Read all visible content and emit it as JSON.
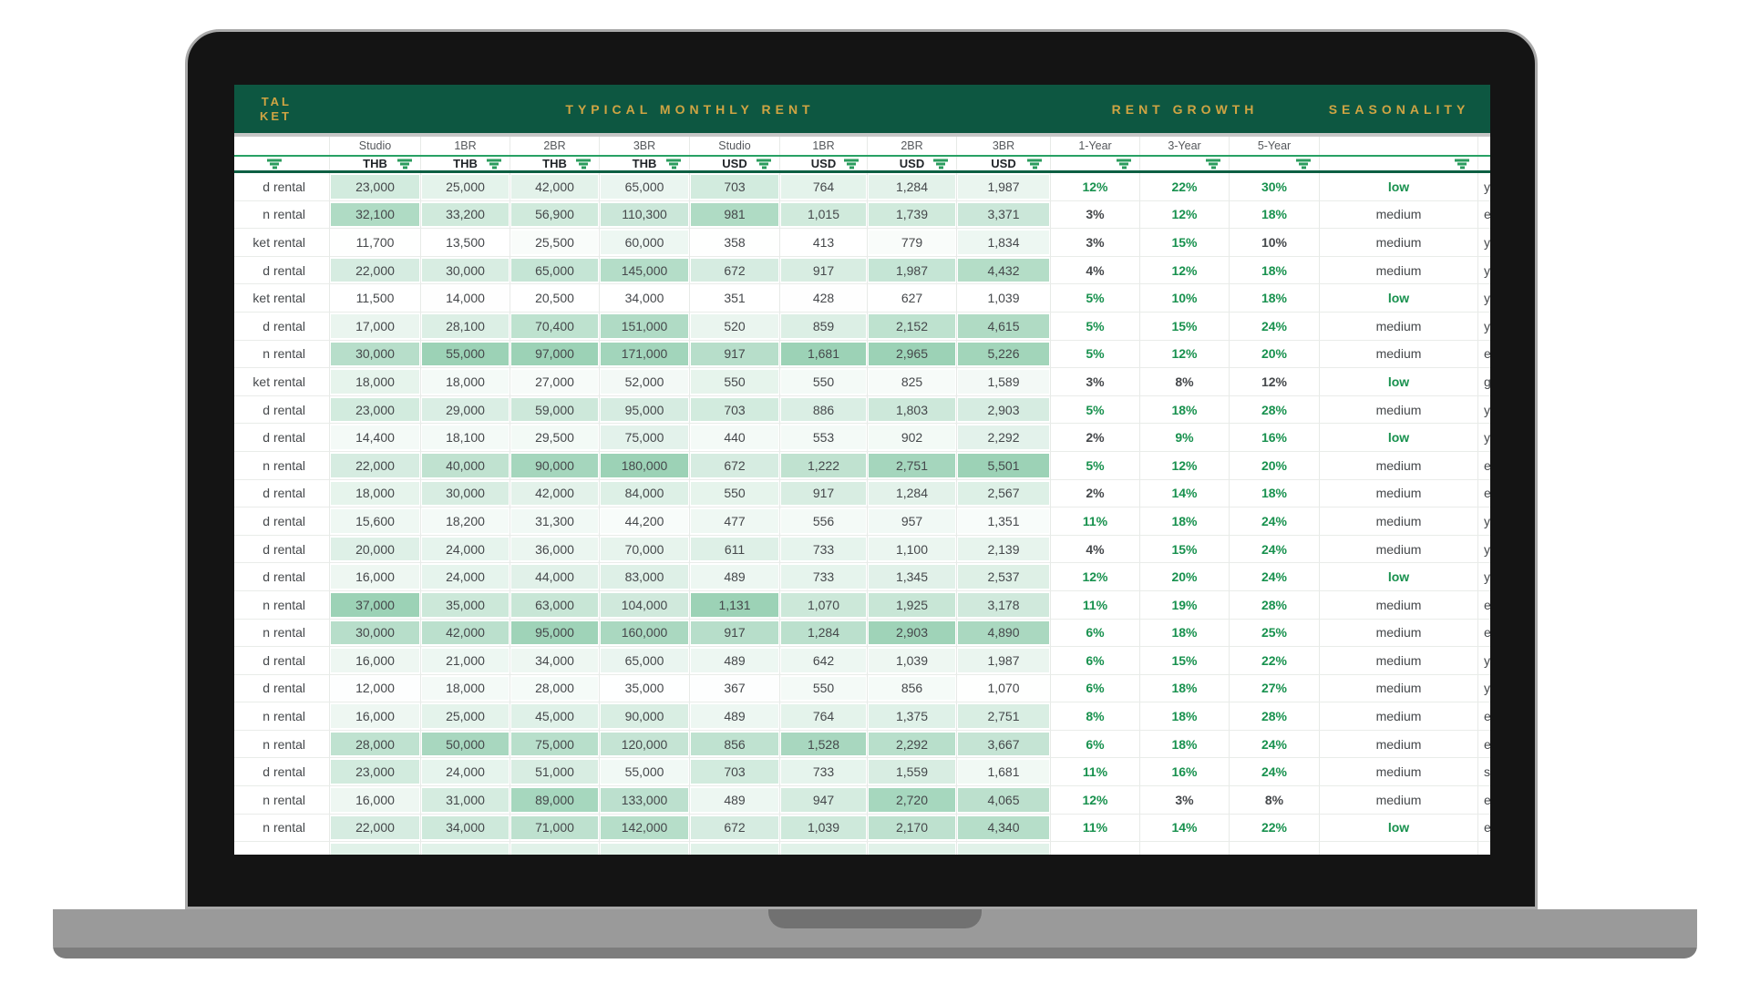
{
  "device": {
    "type": "laptop-mockup"
  },
  "header": {
    "clipped_title_lines": [
      "TAL",
      "KET"
    ],
    "sections": {
      "rent": "TYPICAL MONTHLY RENT",
      "growth": "RENT GROWTH",
      "seasonality": "SEASONALITY"
    },
    "unit_columns": [
      "Studio",
      "1BR",
      "2BR",
      "3BR",
      "Studio",
      "1BR",
      "2BR",
      "3BR"
    ],
    "currency_row": [
      "THB",
      "THB",
      "THB",
      "THB",
      "USD",
      "USD",
      "USD",
      "USD"
    ],
    "growth_columns": [
      "1-Year",
      "3-Year",
      "5-Year"
    ]
  },
  "style": {
    "band_green": "#0d5741",
    "band_gold": "#cfa443",
    "scale_max_green": "#9cd2b6",
    "positive_green": "#18914e",
    "filter_icon_green": "#2a9c5d",
    "growth_green_thresholds": {
      "one_year": 5,
      "three_year": 9,
      "five_year": 16
    }
  },
  "table": {
    "rows": [
      {
        "label": "d rental",
        "thb": [
          23000,
          25000,
          42000,
          65000
        ],
        "usd": [
          703,
          764,
          1284,
          1987
        ],
        "growth": [
          12,
          22,
          30
        ],
        "seasonality": "low",
        "next_fragment": "y"
      },
      {
        "label": "n rental",
        "thb": [
          32100,
          33200,
          56900,
          110300
        ],
        "usd": [
          981,
          1015,
          1739,
          3371
        ],
        "growth": [
          3,
          12,
          18
        ],
        "seasonality": "medium",
        "next_fragment": "e"
      },
      {
        "label": "ket rental",
        "thb": [
          11700,
          13500,
          25500,
          60000
        ],
        "usd": [
          358,
          413,
          779,
          1834
        ],
        "growth": [
          3,
          15,
          10
        ],
        "seasonality": "medium",
        "next_fragment": "y"
      },
      {
        "label": "d rental",
        "thb": [
          22000,
          30000,
          65000,
          145000
        ],
        "usd": [
          672,
          917,
          1987,
          4432
        ],
        "growth": [
          4,
          12,
          18
        ],
        "seasonality": "medium",
        "next_fragment": "y"
      },
      {
        "label": "ket rental",
        "thb": [
          11500,
          14000,
          20500,
          34000
        ],
        "usd": [
          351,
          428,
          627,
          1039
        ],
        "growth": [
          5,
          10,
          18
        ],
        "seasonality": "low",
        "next_fragment": "y"
      },
      {
        "label": "d rental",
        "thb": [
          17000,
          28100,
          70400,
          151000
        ],
        "usd": [
          520,
          859,
          2152,
          4615
        ],
        "growth": [
          5,
          15,
          24
        ],
        "seasonality": "medium",
        "next_fragment": "y"
      },
      {
        "label": "n rental",
        "thb": [
          30000,
          55000,
          97000,
          171000
        ],
        "usd": [
          917,
          1681,
          2965,
          5226
        ],
        "growth": [
          5,
          12,
          20
        ],
        "seasonality": "medium",
        "next_fragment": "e"
      },
      {
        "label": "ket rental",
        "thb": [
          18000,
          18000,
          27000,
          52000
        ],
        "usd": [
          550,
          550,
          825,
          1589
        ],
        "growth": [
          3,
          8,
          12
        ],
        "seasonality": "low",
        "next_fragment": "g"
      },
      {
        "label": "d rental",
        "thb": [
          23000,
          29000,
          59000,
          95000
        ],
        "usd": [
          703,
          886,
          1803,
          2903
        ],
        "growth": [
          5,
          18,
          28
        ],
        "seasonality": "medium",
        "next_fragment": "y"
      },
      {
        "label": "d rental",
        "thb": [
          14400,
          18100,
          29500,
          75000
        ],
        "usd": [
          440,
          553,
          902,
          2292
        ],
        "growth": [
          2,
          9,
          16
        ],
        "seasonality": "low",
        "next_fragment": "y"
      },
      {
        "label": "n rental",
        "thb": [
          22000,
          40000,
          90000,
          180000
        ],
        "usd": [
          672,
          1222,
          2751,
          5501
        ],
        "growth": [
          5,
          12,
          20
        ],
        "seasonality": "medium",
        "next_fragment": "e"
      },
      {
        "label": "d rental",
        "thb": [
          18000,
          30000,
          42000,
          84000
        ],
        "usd": [
          550,
          917,
          1284,
          2567
        ],
        "growth": [
          2,
          14,
          18
        ],
        "seasonality": "medium",
        "next_fragment": "e"
      },
      {
        "label": "d rental",
        "thb": [
          15600,
          18200,
          31300,
          44200
        ],
        "usd": [
          477,
          556,
          957,
          1351
        ],
        "growth": [
          11,
          18,
          24
        ],
        "seasonality": "medium",
        "next_fragment": "y"
      },
      {
        "label": "d rental",
        "thb": [
          20000,
          24000,
          36000,
          70000
        ],
        "usd": [
          611,
          733,
          1100,
          2139
        ],
        "growth": [
          4,
          15,
          24
        ],
        "seasonality": "medium",
        "next_fragment": "y"
      },
      {
        "label": "d rental",
        "thb": [
          16000,
          24000,
          44000,
          83000
        ],
        "usd": [
          489,
          733,
          1345,
          2537
        ],
        "growth": [
          12,
          20,
          24
        ],
        "seasonality": "low",
        "next_fragment": "y"
      },
      {
        "label": "n rental",
        "thb": [
          37000,
          35000,
          63000,
          104000
        ],
        "usd": [
          1131,
          1070,
          1925,
          3178
        ],
        "growth": [
          11,
          19,
          28
        ],
        "seasonality": "medium",
        "next_fragment": "e"
      },
      {
        "label": "n rental",
        "thb": [
          30000,
          42000,
          95000,
          160000
        ],
        "usd": [
          917,
          1284,
          2903,
          4890
        ],
        "growth": [
          6,
          18,
          25
        ],
        "seasonality": "medium",
        "next_fragment": "e"
      },
      {
        "label": "d rental",
        "thb": [
          16000,
          21000,
          34000,
          65000
        ],
        "usd": [
          489,
          642,
          1039,
          1987
        ],
        "growth": [
          6,
          15,
          22
        ],
        "seasonality": "medium",
        "next_fragment": "y"
      },
      {
        "label": "d rental",
        "thb": [
          12000,
          18000,
          28000,
          35000
        ],
        "usd": [
          367,
          550,
          856,
          1070
        ],
        "growth": [
          6,
          18,
          27
        ],
        "seasonality": "medium",
        "next_fragment": "y"
      },
      {
        "label": "n rental",
        "thb": [
          16000,
          25000,
          45000,
          90000
        ],
        "usd": [
          489,
          764,
          1375,
          2751
        ],
        "growth": [
          8,
          18,
          28
        ],
        "seasonality": "medium",
        "next_fragment": "e"
      },
      {
        "label": "n rental",
        "thb": [
          28000,
          50000,
          75000,
          120000
        ],
        "usd": [
          856,
          1528,
          2292,
          3667
        ],
        "growth": [
          6,
          18,
          24
        ],
        "seasonality": "medium",
        "next_fragment": "e"
      },
      {
        "label": "d rental",
        "thb": [
          23000,
          24000,
          51000,
          55000
        ],
        "usd": [
          703,
          733,
          1559,
          1681
        ],
        "growth": [
          11,
          16,
          24
        ],
        "seasonality": "medium",
        "next_fragment": "s"
      },
      {
        "label": "n rental",
        "thb": [
          16000,
          31000,
          89000,
          133000
        ],
        "usd": [
          489,
          947,
          2720,
          4065
        ],
        "growth": [
          12,
          3,
          8
        ],
        "seasonality": "medium",
        "next_fragment": "e"
      },
      {
        "label": "n rental",
        "thb": [
          22000,
          34000,
          71000,
          142000
        ],
        "usd": [
          672,
          1039,
          2170,
          4340
        ],
        "growth": [
          11,
          14,
          22
        ],
        "seasonality": "low",
        "next_fragment": "e"
      }
    ]
  }
}
